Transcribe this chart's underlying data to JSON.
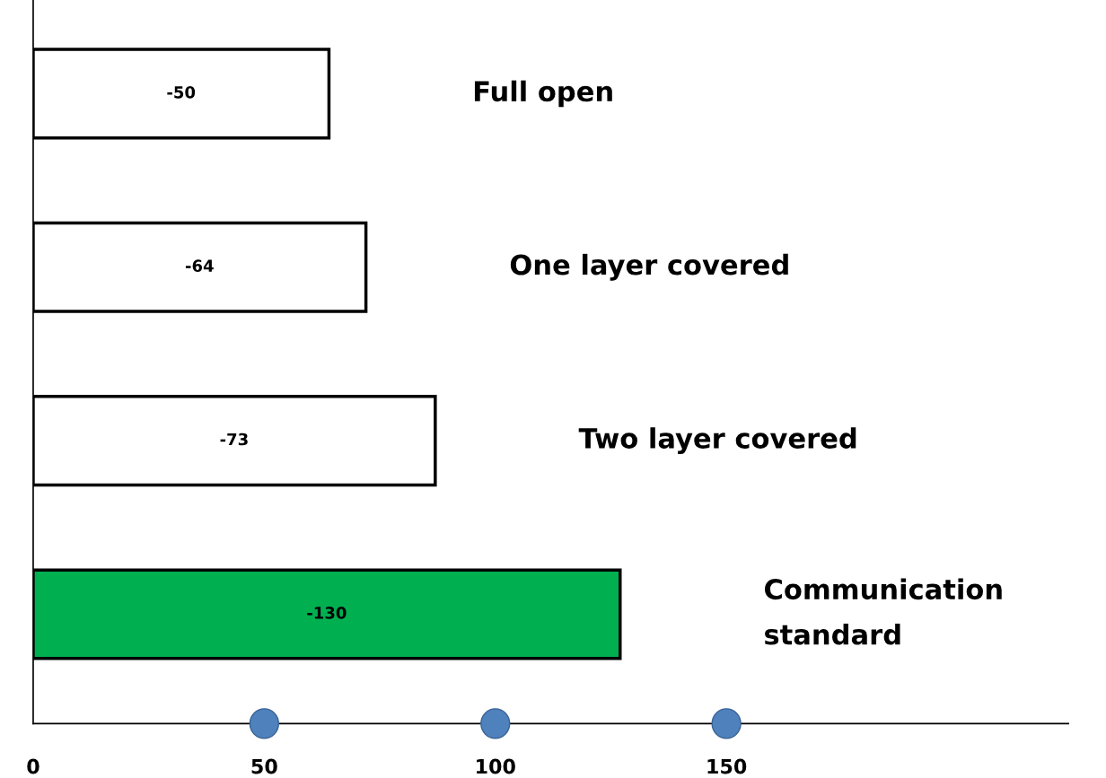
{
  "chart_data": {
    "type": "bar",
    "orientation": "horizontal",
    "categories": [
      "Full open",
      "One layer covered",
      "Two layer covered",
      "Communication\nstandard"
    ],
    "values": [
      64,
      72,
      87,
      127
    ],
    "colors": [
      "#ffffff",
      "#ffffff",
      "#ffffff",
      "#00b050"
    ],
    "annotations": [
      "-50",
      "-64",
      "-73",
      "-130"
    ],
    "xlim": [
      0,
      224
    ],
    "xticks": [
      0,
      50,
      100,
      150
    ],
    "grid": false
  }
}
